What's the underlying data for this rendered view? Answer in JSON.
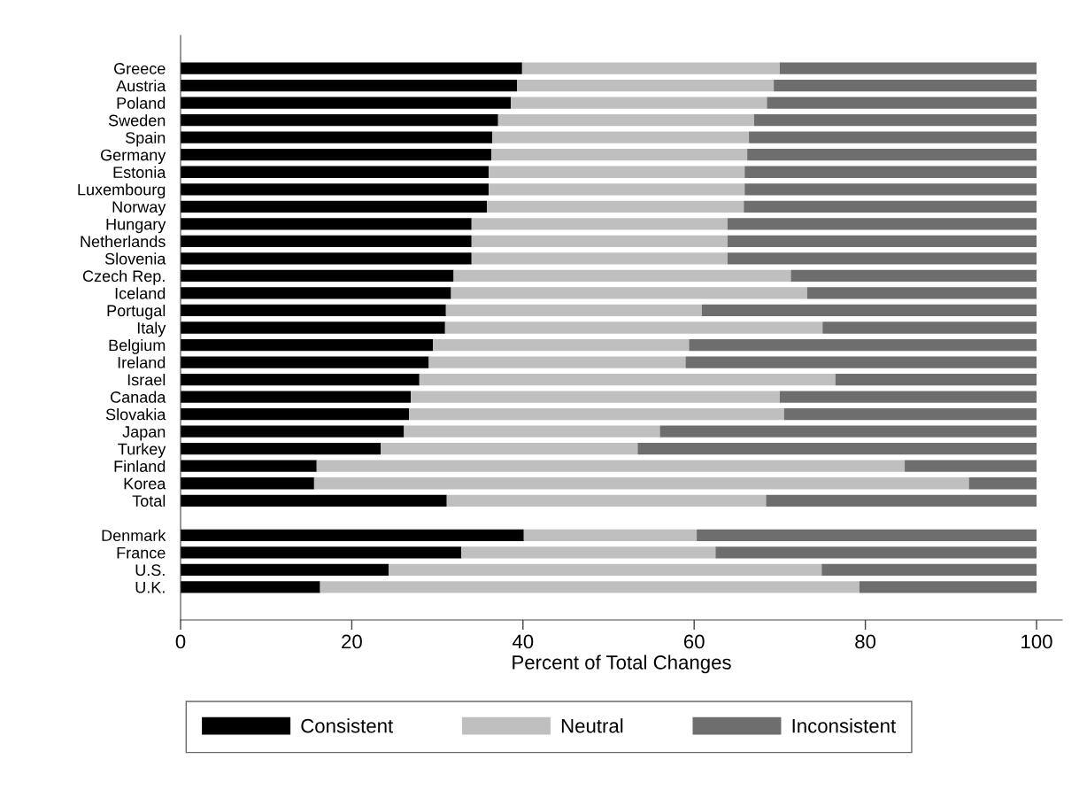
{
  "chart_data": {
    "type": "bar",
    "orientation": "horizontal",
    "stacked": true,
    "xlabel": "Percent of Total Changes",
    "categories": [
      "Greece",
      "Austria",
      "Poland",
      "Sweden",
      "Spain",
      "Germany",
      "Estonia",
      "Luxembourg",
      "Norway",
      "Hungary",
      "Netherlands",
      "Slovenia",
      "Czech Rep.",
      "Iceland",
      "Portugal",
      "Italy",
      "Belgium",
      "Ireland",
      "Israel",
      "Canada",
      "Slovakia",
      "Japan",
      "Turkey",
      "Finland",
      "Korea",
      "Total",
      null,
      "Denmark",
      "France",
      "U.S.",
      "U.K."
    ],
    "series": [
      {
        "name": "Consistent",
        "color": "#000000",
        "values": [
          39.9,
          39.3,
          38.6,
          37.1,
          36.4,
          36.3,
          36.0,
          36.0,
          35.8,
          34.0,
          34.0,
          34.0,
          31.9,
          31.6,
          31.0,
          30.9,
          29.5,
          29.0,
          27.9,
          26.9,
          26.7,
          26.1,
          23.4,
          15.9,
          15.6,
          31.1,
          null,
          40.1,
          32.8,
          24.3,
          16.3
        ]
      },
      {
        "name": "Neutral",
        "color": "#bfbfbf",
        "values": [
          30.1,
          30.0,
          29.9,
          29.9,
          30.0,
          29.9,
          29.9,
          29.9,
          30.0,
          29.9,
          29.9,
          29.9,
          39.4,
          41.6,
          29.9,
          44.1,
          29.9,
          30.0,
          48.6,
          43.1,
          43.8,
          29.9,
          30.0,
          68.7,
          76.5,
          37.3,
          null,
          20.2,
          29.7,
          50.6,
          63.0
        ]
      },
      {
        "name": "Inconsistent",
        "color": "#6e6e6e",
        "values": [
          30.0,
          30.7,
          31.5,
          33.0,
          33.6,
          33.8,
          34.1,
          34.1,
          34.2,
          36.1,
          36.1,
          36.1,
          28.7,
          26.8,
          39.1,
          25.0,
          40.6,
          41.0,
          23.5,
          30.0,
          29.5,
          44.0,
          46.6,
          15.4,
          7.9,
          31.6,
          null,
          39.7,
          37.5,
          25.1,
          20.7
        ]
      }
    ],
    "xlim": [
      0,
      103
    ],
    "xticks": [
      0,
      20,
      40,
      60,
      80,
      100
    ],
    "legend": "bottom",
    "grid": false
  }
}
